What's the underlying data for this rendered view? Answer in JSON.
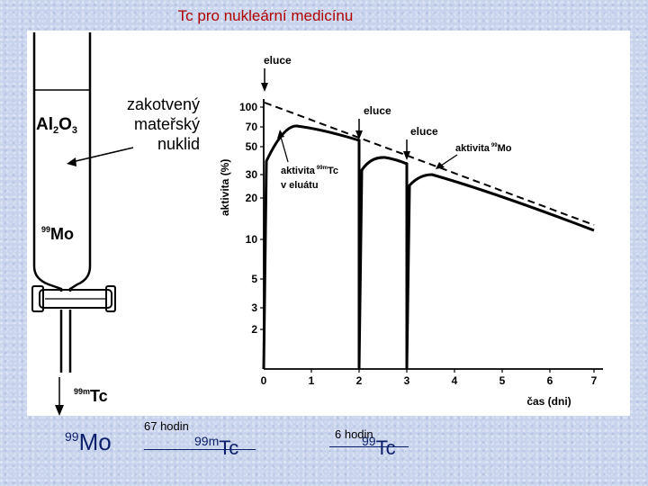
{
  "slide": {
    "title": "Tc pro nukleární medicínu"
  },
  "figure": {
    "column": {
      "al2o3_main": "Al",
      "al2o3_sub1": "2",
      "al2o3_mid": "O",
      "al2o3_sub2": "3",
      "parent_line1": "zakotvený",
      "parent_line2": "mateřský",
      "parent_line3": "nuklid",
      "mo_mass": "99",
      "mo_symbol": "Mo",
      "tc_mass": "99m",
      "tc_symbol": "Tc"
    },
    "graph": {
      "y_axis_label": "aktivita (%)",
      "x_axis_label": "čas (dni)",
      "y_ticks": [
        "100",
        "70",
        "50",
        "30",
        "20",
        "10",
        "5",
        "3",
        "2"
      ],
      "x_ticks": [
        "0",
        "1",
        "2",
        "3",
        "4",
        "5",
        "6",
        "7"
      ],
      "elution_label_1": "eluce",
      "elution_label_2": "eluce",
      "elution_label_3": "eluce",
      "tc_activity_line1": "aktivita",
      "tc_activity_mass": "99m",
      "tc_activity_symbol": "Tc",
      "tc_activity_line2": "v eluátu",
      "mo_activity_text": "aktivita",
      "mo_activity_mass": "99",
      "mo_activity_symbol": "Mo"
    }
  },
  "decay_chain": {
    "mo_mass": "99",
    "mo_symbol": "Mo",
    "half_life_1": "67 hodin",
    "tcm_mass": "99m",
    "tcm_symbol": "Tc",
    "half_life_2": "6 hodin",
    "tc_mass": "99",
    "tc_symbol": "Tc"
  }
}
